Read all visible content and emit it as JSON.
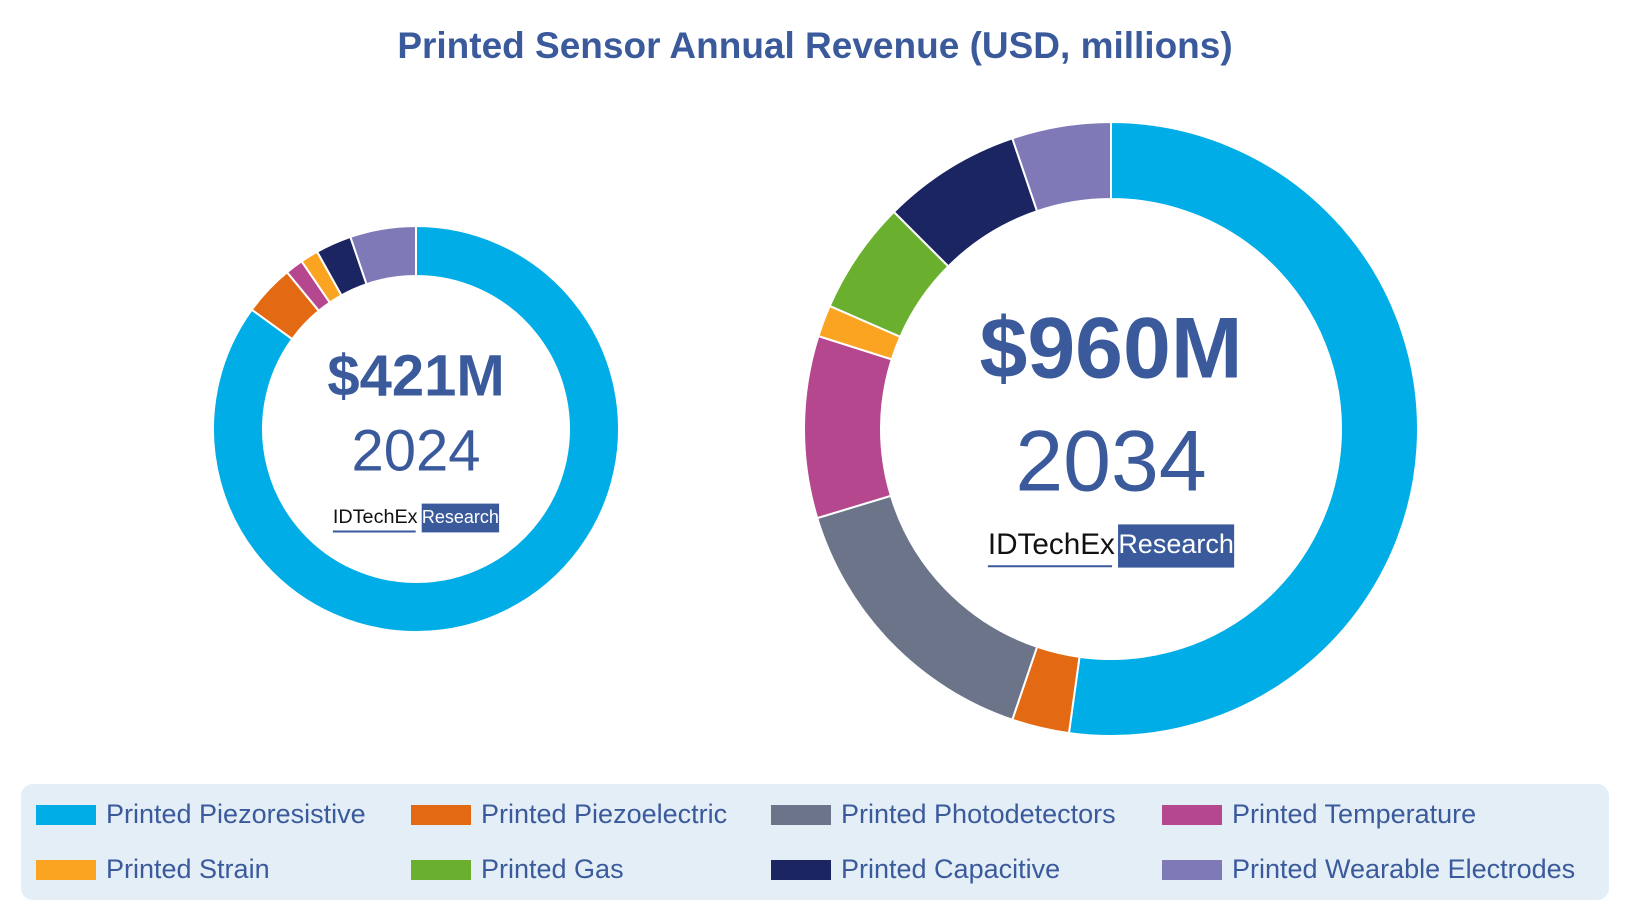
{
  "title": "Printed Sensor Annual Revenue (USD, millions)",
  "chart_data": [
    {
      "type": "pie",
      "donut": true,
      "categories": [
        "Printed Piezoresistive",
        "Printed Piezoelectric",
        "Printed Photodetectors",
        "Printed Temperature",
        "Printed Strain",
        "Printed Gas",
        "Printed Capacitive",
        "Printed Wearable Electrodes"
      ],
      "colors": [
        "#00ade6",
        "#e36a12",
        "#6b7489",
        "#b5478e",
        "#fba421",
        "#6aaf2e",
        "#1a2561",
        "#8079b8"
      ],
      "values": [
        357,
        17,
        0,
        6,
        6,
        0,
        12,
        22
      ],
      "total_label": "$421M",
      "year": "2024",
      "logo_brand": "IDTechEx",
      "logo_tag": "Research"
    },
    {
      "type": "pie",
      "donut": true,
      "categories": [
        "Printed Piezoresistive",
        "Printed Piezoelectric",
        "Printed Photodetectors",
        "Printed Temperature",
        "Printed Strain",
        "Printed Gas",
        "Printed Capacitive",
        "Printed Wearable Electrodes"
      ],
      "colors": [
        "#00ade6",
        "#e36a12",
        "#6b7489",
        "#b5478e",
        "#fba421",
        "#6aaf2e",
        "#1a2561",
        "#8079b8"
      ],
      "values": [
        501,
        29,
        145,
        92,
        16,
        57,
        70,
        50
      ],
      "total_label": "$960M",
      "year": "2034",
      "logo_brand": "IDTechEx",
      "logo_tag": "Research"
    }
  ]
}
